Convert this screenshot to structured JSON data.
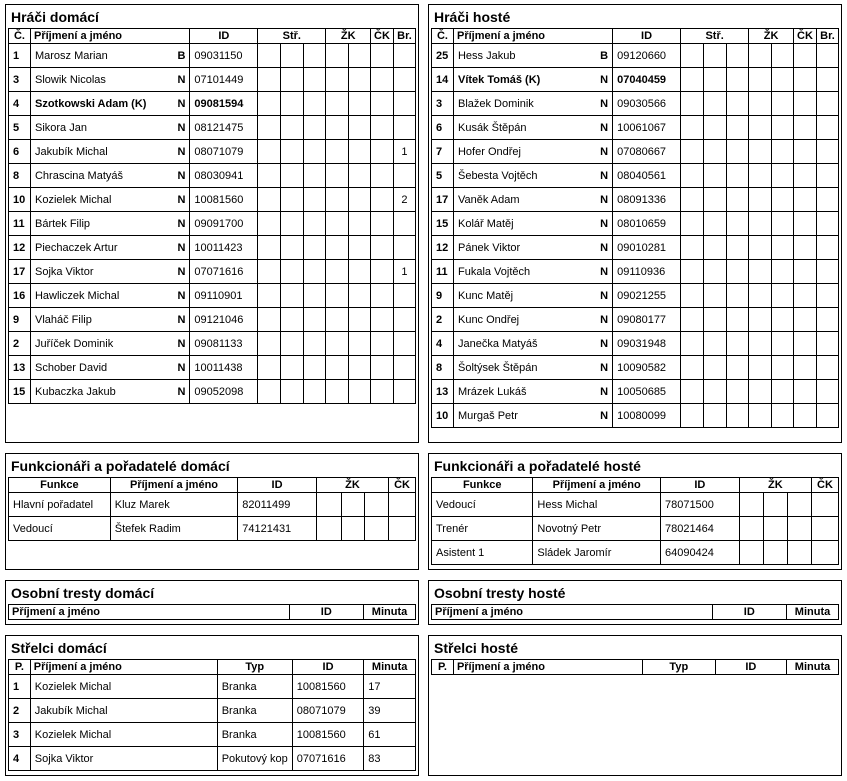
{
  "home_players": {
    "title": "Hráči domácí",
    "headers": {
      "no": "Č.",
      "name": "Příjmení a jméno",
      "id": "ID",
      "str": "Stř.",
      "zk": "ŽK",
      "ck": "ČK",
      "br": "Br."
    },
    "rows": [
      {
        "no": "1",
        "name": "Marosz Marian",
        "role": "B",
        "id": "09031150",
        "br": ""
      },
      {
        "no": "3",
        "name": "Slowik Nicolas",
        "role": "N",
        "id": "07101449",
        "br": ""
      },
      {
        "no": "4",
        "name": "Szotkowski Adam (K)",
        "role": "N",
        "id": "09081594",
        "br": "",
        "bold": true
      },
      {
        "no": "5",
        "name": "Sikora Jan",
        "role": "N",
        "id": "08121475",
        "br": ""
      },
      {
        "no": "6",
        "name": "Jakubík Michal",
        "role": "N",
        "id": "08071079",
        "br": "1"
      },
      {
        "no": "8",
        "name": "Chrascina Matyáš",
        "role": "N",
        "id": "08030941",
        "br": ""
      },
      {
        "no": "10",
        "name": "Kozielek Michal",
        "role": "N",
        "id": "10081560",
        "br": "2"
      },
      {
        "no": "11",
        "name": "Bártek Filip",
        "role": "N",
        "id": "09091700",
        "br": ""
      },
      {
        "no": "12",
        "name": "Piechaczek Artur",
        "role": "N",
        "id": "10011423",
        "br": ""
      },
      {
        "no": "17",
        "name": "Sojka Viktor",
        "role": "N",
        "id": "07071616",
        "br": "1"
      },
      {
        "no": "16",
        "name": "Hawliczek Michal",
        "role": "N",
        "id": "09110901",
        "br": ""
      },
      {
        "no": "9",
        "name": "Vlaháč Filip",
        "role": "N",
        "id": "09121046",
        "br": ""
      },
      {
        "no": "2",
        "name": "Juříček Dominik",
        "role": "N",
        "id": "09081133",
        "br": ""
      },
      {
        "no": "13",
        "name": "Schober David",
        "role": "N",
        "id": "10011438",
        "br": ""
      },
      {
        "no": "15",
        "name": "Kubaczka Jakub",
        "role": "N",
        "id": "09052098",
        "br": ""
      }
    ]
  },
  "away_players": {
    "title": "Hráči hosté",
    "headers": {
      "no": "Č.",
      "name": "Příjmení a jméno",
      "id": "ID",
      "str": "Stř.",
      "zk": "ŽK",
      "ck": "ČK",
      "br": "Br."
    },
    "rows": [
      {
        "no": "25",
        "name": "Hess Jakub",
        "role": "B",
        "id": "09120660",
        "br": ""
      },
      {
        "no": "14",
        "name": "Vítek Tomáš (K)",
        "role": "N",
        "id": "07040459",
        "br": "",
        "bold": true
      },
      {
        "no": "3",
        "name": "Blažek Dominik",
        "role": "N",
        "id": "09030566",
        "br": ""
      },
      {
        "no": "6",
        "name": "Kusák Štěpán",
        "role": "N",
        "id": "10061067",
        "br": ""
      },
      {
        "no": "7",
        "name": "Hofer Ondřej",
        "role": "N",
        "id": "07080667",
        "br": ""
      },
      {
        "no": "5",
        "name": "Šebesta Vojtěch",
        "role": "N",
        "id": "08040561",
        "br": ""
      },
      {
        "no": "17",
        "name": "Vaněk Adam",
        "role": "N",
        "id": "08091336",
        "br": ""
      },
      {
        "no": "15",
        "name": "Kolář Matěj",
        "role": "N",
        "id": "08010659",
        "br": ""
      },
      {
        "no": "12",
        "name": "Pánek Viktor",
        "role": "N",
        "id": "09010281",
        "br": ""
      },
      {
        "no": "11",
        "name": "Fukala Vojtěch",
        "role": "N",
        "id": "09110936",
        "br": ""
      },
      {
        "no": "9",
        "name": "Kunc Matěj",
        "role": "N",
        "id": "09021255",
        "br": ""
      },
      {
        "no": "2",
        "name": "Kunc Ondřej",
        "role": "N",
        "id": "09080177",
        "br": ""
      },
      {
        "no": "4",
        "name": "Janečka Matyáš",
        "role": "N",
        "id": "09031948",
        "br": ""
      },
      {
        "no": "8",
        "name": "Šoltýsek Štěpán",
        "role": "N",
        "id": "10090582",
        "br": ""
      },
      {
        "no": "13",
        "name": "Mrázek Lukáš",
        "role": "N",
        "id": "10050685",
        "br": ""
      },
      {
        "no": "10",
        "name": "Murgaš Petr",
        "role": "N",
        "id": "10080099",
        "br": ""
      }
    ]
  },
  "home_officials": {
    "title": "Funkcionáři a pořadatelé domácí",
    "headers": {
      "funkce": "Funkce",
      "name": "Příjmení a jméno",
      "id": "ID",
      "zk": "ŽK",
      "ck": "ČK"
    },
    "rows": [
      {
        "funkce": "Hlavní pořadatel",
        "name": "Kluz Marek",
        "id": "82011499"
      },
      {
        "funkce": "Vedoucí",
        "name": "Štefek Radim",
        "id": "74121431"
      }
    ]
  },
  "away_officials": {
    "title": "Funkcionáři a pořadatelé hosté",
    "headers": {
      "funkce": "Funkce",
      "name": "Příjmení a jméno",
      "id": "ID",
      "zk": "ŽK",
      "ck": "ČK"
    },
    "rows": [
      {
        "funkce": "Vedoucí",
        "name": "Hess Michal",
        "id": "78071500"
      },
      {
        "funkce": "Trenér",
        "name": "Novotný Petr",
        "id": "78021464"
      },
      {
        "funkce": "Asistent 1",
        "name": "Sládek Jaromír",
        "id": "64090424"
      }
    ]
  },
  "home_penalties": {
    "title": "Osobní tresty domácí",
    "headers": {
      "name": "Příjmení a jméno",
      "id": "ID",
      "min": "Minuta"
    },
    "rows": []
  },
  "away_penalties": {
    "title": "Osobní tresty hosté",
    "headers": {
      "name": "Příjmení a jméno",
      "id": "ID",
      "min": "Minuta"
    },
    "rows": []
  },
  "home_scorers": {
    "title": "Střelci domácí",
    "headers": {
      "p": "P.",
      "name": "Příjmení a jméno",
      "typ": "Typ",
      "id": "ID",
      "min": "Minuta"
    },
    "rows": [
      {
        "p": "1",
        "name": "Kozielek Michal",
        "typ": "Branka",
        "id": "10081560",
        "min": "17"
      },
      {
        "p": "2",
        "name": "Jakubík Michal",
        "typ": "Branka",
        "id": "08071079",
        "min": "39"
      },
      {
        "p": "3",
        "name": "Kozielek Michal",
        "typ": "Branka",
        "id": "10081560",
        "min": "61"
      },
      {
        "p": "4",
        "name": "Sojka Viktor",
        "typ": "Pokutový kop",
        "id": "07071616",
        "min": "83"
      }
    ]
  },
  "away_scorers": {
    "title": "Střelci hosté",
    "headers": {
      "p": "P.",
      "name": "Příjmení a jméno",
      "typ": "Typ",
      "id": "ID",
      "min": "Minuta"
    },
    "rows": []
  }
}
